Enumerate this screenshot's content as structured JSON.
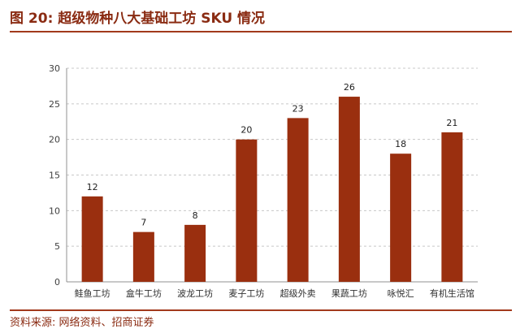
{
  "header": {
    "title": "图 20:  超级物种八大基础工坊 SKU 情况"
  },
  "footer": {
    "source": "资料来源:  网络资料、招商证券"
  },
  "colors": {
    "bar": "#9a2f0f",
    "accent": "#8a2b12",
    "grid": "#c8c8c8"
  },
  "chart_data": {
    "type": "bar",
    "title": "",
    "xlabel": "",
    "ylabel": "",
    "categories": [
      "鲑鱼工坊",
      "盒牛工坊",
      "波龙工坊",
      "麦子工坊",
      "超级外卖",
      "果蔬工坊",
      "咏悦汇",
      "有机生活馆"
    ],
    "values": [
      12,
      7,
      8,
      20,
      23,
      26,
      18,
      21
    ],
    "ylim": [
      0,
      30
    ],
    "yticks": [
      0,
      5,
      10,
      15,
      20,
      25,
      30
    ],
    "grid": true,
    "data_labels": true,
    "legend": "none"
  }
}
